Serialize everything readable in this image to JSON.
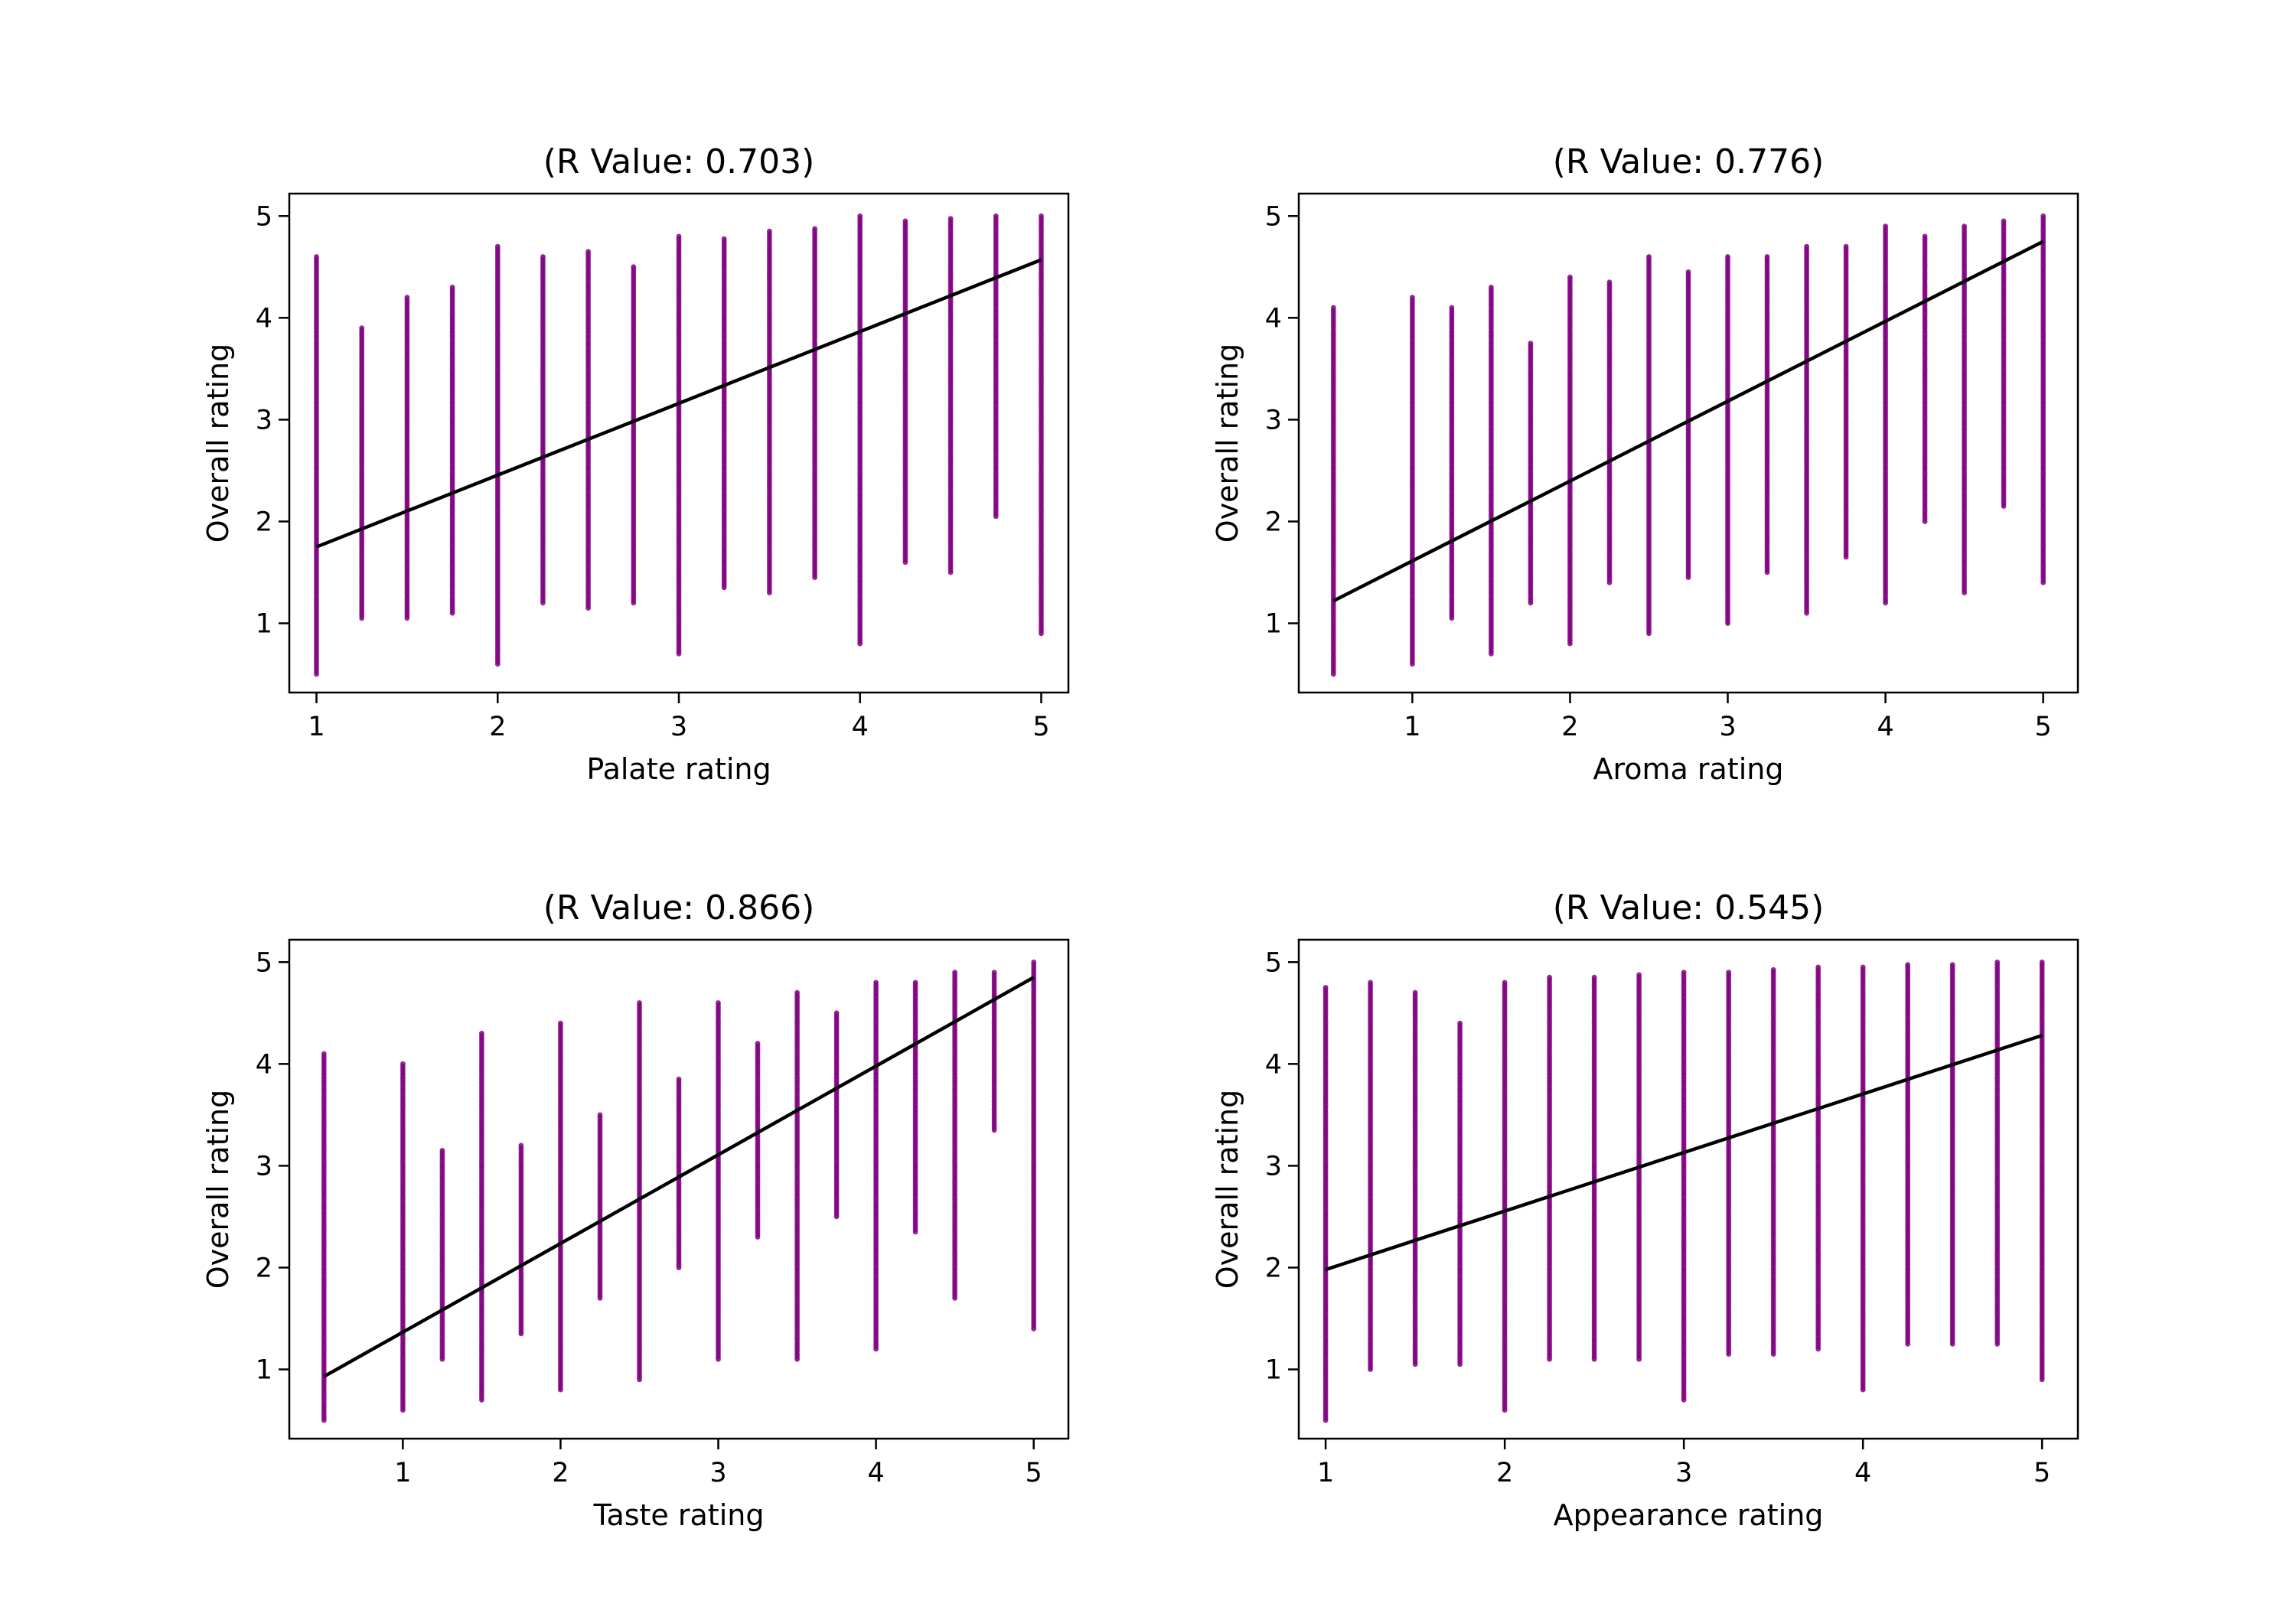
{
  "colors": {
    "points": "#800080",
    "fit_line": "#000000",
    "axes": "#000000"
  },
  "chart_data": [
    {
      "type": "scatter",
      "title": "(R Value: 0.703)",
      "xlabel": "Palate rating",
      "ylabel": "Overall rating",
      "xlim": [
        0.85,
        5.15
      ],
      "ylim": [
        0.32,
        5.22
      ],
      "xticks": [
        1,
        2,
        3,
        4,
        5
      ],
      "yticks": [
        1,
        2,
        3,
        4,
        5
      ],
      "xtick_labels": [
        "1",
        "2",
        "3",
        "4",
        "5"
      ],
      "ytick_labels": [
        "1",
        "2",
        "3",
        "4",
        "5"
      ],
      "columns": [
        {
          "x": 1.0,
          "min": 0.5,
          "max": 4.6
        },
        {
          "x": 1.25,
          "min": 1.05,
          "max": 3.9
        },
        {
          "x": 1.5,
          "min": 1.05,
          "max": 4.2
        },
        {
          "x": 1.75,
          "min": 1.1,
          "max": 4.3
        },
        {
          "x": 2.0,
          "min": 0.6,
          "max": 4.7
        },
        {
          "x": 2.25,
          "min": 1.2,
          "max": 4.6
        },
        {
          "x": 2.5,
          "min": 1.15,
          "max": 4.65
        },
        {
          "x": 2.75,
          "min": 1.2,
          "max": 4.5
        },
        {
          "x": 3.0,
          "min": 0.7,
          "max": 4.8
        },
        {
          "x": 3.25,
          "min": 1.35,
          "max": 4.78
        },
        {
          "x": 3.5,
          "min": 1.3,
          "max": 4.85
        },
        {
          "x": 3.75,
          "min": 1.45,
          "max": 4.88
        },
        {
          "x": 4.0,
          "min": 0.8,
          "max": 5.0
        },
        {
          "x": 4.25,
          "min": 1.6,
          "max": 4.95
        },
        {
          "x": 4.5,
          "min": 1.5,
          "max": 4.97
        },
        {
          "x": 4.75,
          "min": 2.05,
          "max": 5.0
        },
        {
          "x": 5.0,
          "min": 0.9,
          "max": 5.0
        }
      ],
      "fit_line": {
        "x": [
          1.0,
          5.0
        ],
        "y": [
          1.75,
          4.57
        ]
      }
    },
    {
      "type": "scatter",
      "title": "(R Value: 0.776)",
      "xlabel": "Aroma rating",
      "ylabel": "Overall rating",
      "xlim": [
        0.28,
        5.22
      ],
      "ylim": [
        0.32,
        5.22
      ],
      "xticks": [
        1,
        2,
        3,
        4,
        5
      ],
      "yticks": [
        1,
        2,
        3,
        4,
        5
      ],
      "xtick_labels": [
        "1",
        "2",
        "3",
        "4",
        "5"
      ],
      "ytick_labels": [
        "1",
        "2",
        "3",
        "4",
        "5"
      ],
      "columns": [
        {
          "x": 0.5,
          "min": 0.5,
          "max": 4.1
        },
        {
          "x": 1.0,
          "min": 0.6,
          "max": 4.2
        },
        {
          "x": 1.25,
          "min": 1.05,
          "max": 4.1
        },
        {
          "x": 1.5,
          "min": 0.7,
          "max": 4.3
        },
        {
          "x": 1.75,
          "min": 1.2,
          "max": 3.75
        },
        {
          "x": 2.0,
          "min": 0.8,
          "max": 4.4
        },
        {
          "x": 2.25,
          "min": 1.4,
          "max": 4.35
        },
        {
          "x": 2.5,
          "min": 0.9,
          "max": 4.6
        },
        {
          "x": 2.75,
          "min": 1.45,
          "max": 4.45
        },
        {
          "x": 3.0,
          "min": 1.0,
          "max": 4.6
        },
        {
          "x": 3.25,
          "min": 1.5,
          "max": 4.6
        },
        {
          "x": 3.5,
          "min": 1.1,
          "max": 4.7
        },
        {
          "x": 3.75,
          "min": 1.65,
          "max": 4.7
        },
        {
          "x": 4.0,
          "min": 1.2,
          "max": 4.9
        },
        {
          "x": 4.25,
          "min": 2.0,
          "max": 4.8
        },
        {
          "x": 4.5,
          "min": 1.3,
          "max": 4.9
        },
        {
          "x": 4.75,
          "min": 2.15,
          "max": 4.95
        },
        {
          "x": 5.0,
          "min": 1.4,
          "max": 5.0
        }
      ],
      "fit_line": {
        "x": [
          0.5,
          5.0
        ],
        "y": [
          1.22,
          4.75
        ]
      }
    },
    {
      "type": "scatter",
      "title": "(R Value: 0.866)",
      "xlabel": "Taste rating",
      "ylabel": "Overall rating",
      "xlim": [
        0.28,
        5.22
      ],
      "ylim": [
        0.32,
        5.22
      ],
      "xticks": [
        1,
        2,
        3,
        4,
        5
      ],
      "yticks": [
        1,
        2,
        3,
        4,
        5
      ],
      "xtick_labels": [
        "1",
        "2",
        "3",
        "4",
        "5"
      ],
      "ytick_labels": [
        "1",
        "2",
        "3",
        "4",
        "5"
      ],
      "columns": [
        {
          "x": 0.5,
          "min": 0.5,
          "max": 4.1
        },
        {
          "x": 1.0,
          "min": 0.6,
          "max": 4.0
        },
        {
          "x": 1.25,
          "min": 1.1,
          "max": 3.15
        },
        {
          "x": 1.5,
          "min": 0.7,
          "max": 4.3
        },
        {
          "x": 1.75,
          "min": 1.35,
          "max": 3.2
        },
        {
          "x": 2.0,
          "min": 0.8,
          "max": 4.4
        },
        {
          "x": 2.25,
          "min": 1.7,
          "max": 3.5
        },
        {
          "x": 2.5,
          "min": 0.9,
          "max": 4.6
        },
        {
          "x": 2.75,
          "min": 2.0,
          "max": 3.85
        },
        {
          "x": 3.0,
          "min": 1.1,
          "max": 4.6
        },
        {
          "x": 3.25,
          "min": 2.3,
          "max": 4.2
        },
        {
          "x": 3.5,
          "min": 1.1,
          "max": 4.7
        },
        {
          "x": 3.75,
          "min": 2.5,
          "max": 4.5
        },
        {
          "x": 4.0,
          "min": 1.2,
          "max": 4.8
        },
        {
          "x": 4.25,
          "min": 2.35,
          "max": 4.8
        },
        {
          "x": 4.5,
          "min": 1.7,
          "max": 4.9
        },
        {
          "x": 4.75,
          "min": 3.35,
          "max": 4.9
        },
        {
          "x": 5.0,
          "min": 1.4,
          "max": 5.0
        }
      ],
      "fit_line": {
        "x": [
          0.5,
          5.0
        ],
        "y": [
          0.93,
          4.85
        ]
      }
    },
    {
      "type": "scatter",
      "title": "(R Value: 0.545)",
      "xlabel": "Appearance rating",
      "ylabel": "Overall rating",
      "xlim": [
        0.85,
        5.2
      ],
      "ylim": [
        0.32,
        5.22
      ],
      "xticks": [
        1,
        2,
        3,
        4,
        5
      ],
      "yticks": [
        1,
        2,
        3,
        4,
        5
      ],
      "xtick_labels": [
        "1",
        "2",
        "3",
        "4",
        "5"
      ],
      "ytick_labels": [
        "1",
        "2",
        "3",
        "4",
        "5"
      ],
      "columns": [
        {
          "x": 1.0,
          "min": 0.5,
          "max": 4.75
        },
        {
          "x": 1.25,
          "min": 1.0,
          "max": 4.8
        },
        {
          "x": 1.5,
          "min": 1.05,
          "max": 4.7
        },
        {
          "x": 1.75,
          "min": 1.05,
          "max": 4.4
        },
        {
          "x": 2.0,
          "min": 0.6,
          "max": 4.8
        },
        {
          "x": 2.25,
          "min": 1.1,
          "max": 4.85
        },
        {
          "x": 2.5,
          "min": 1.1,
          "max": 4.85
        },
        {
          "x": 2.75,
          "min": 1.1,
          "max": 4.88
        },
        {
          "x": 3.0,
          "min": 0.7,
          "max": 4.9
        },
        {
          "x": 3.25,
          "min": 1.15,
          "max": 4.9
        },
        {
          "x": 3.5,
          "min": 1.15,
          "max": 4.92
        },
        {
          "x": 3.75,
          "min": 1.2,
          "max": 4.95
        },
        {
          "x": 4.0,
          "min": 0.8,
          "max": 4.95
        },
        {
          "x": 4.25,
          "min": 1.25,
          "max": 4.97
        },
        {
          "x": 4.5,
          "min": 1.25,
          "max": 4.98
        },
        {
          "x": 4.75,
          "min": 1.25,
          "max": 5.0
        },
        {
          "x": 5.0,
          "min": 0.9,
          "max": 5.0
        }
      ],
      "fit_line": {
        "x": [
          1.0,
          5.0
        ],
        "y": [
          1.98,
          4.28
        ]
      }
    }
  ]
}
